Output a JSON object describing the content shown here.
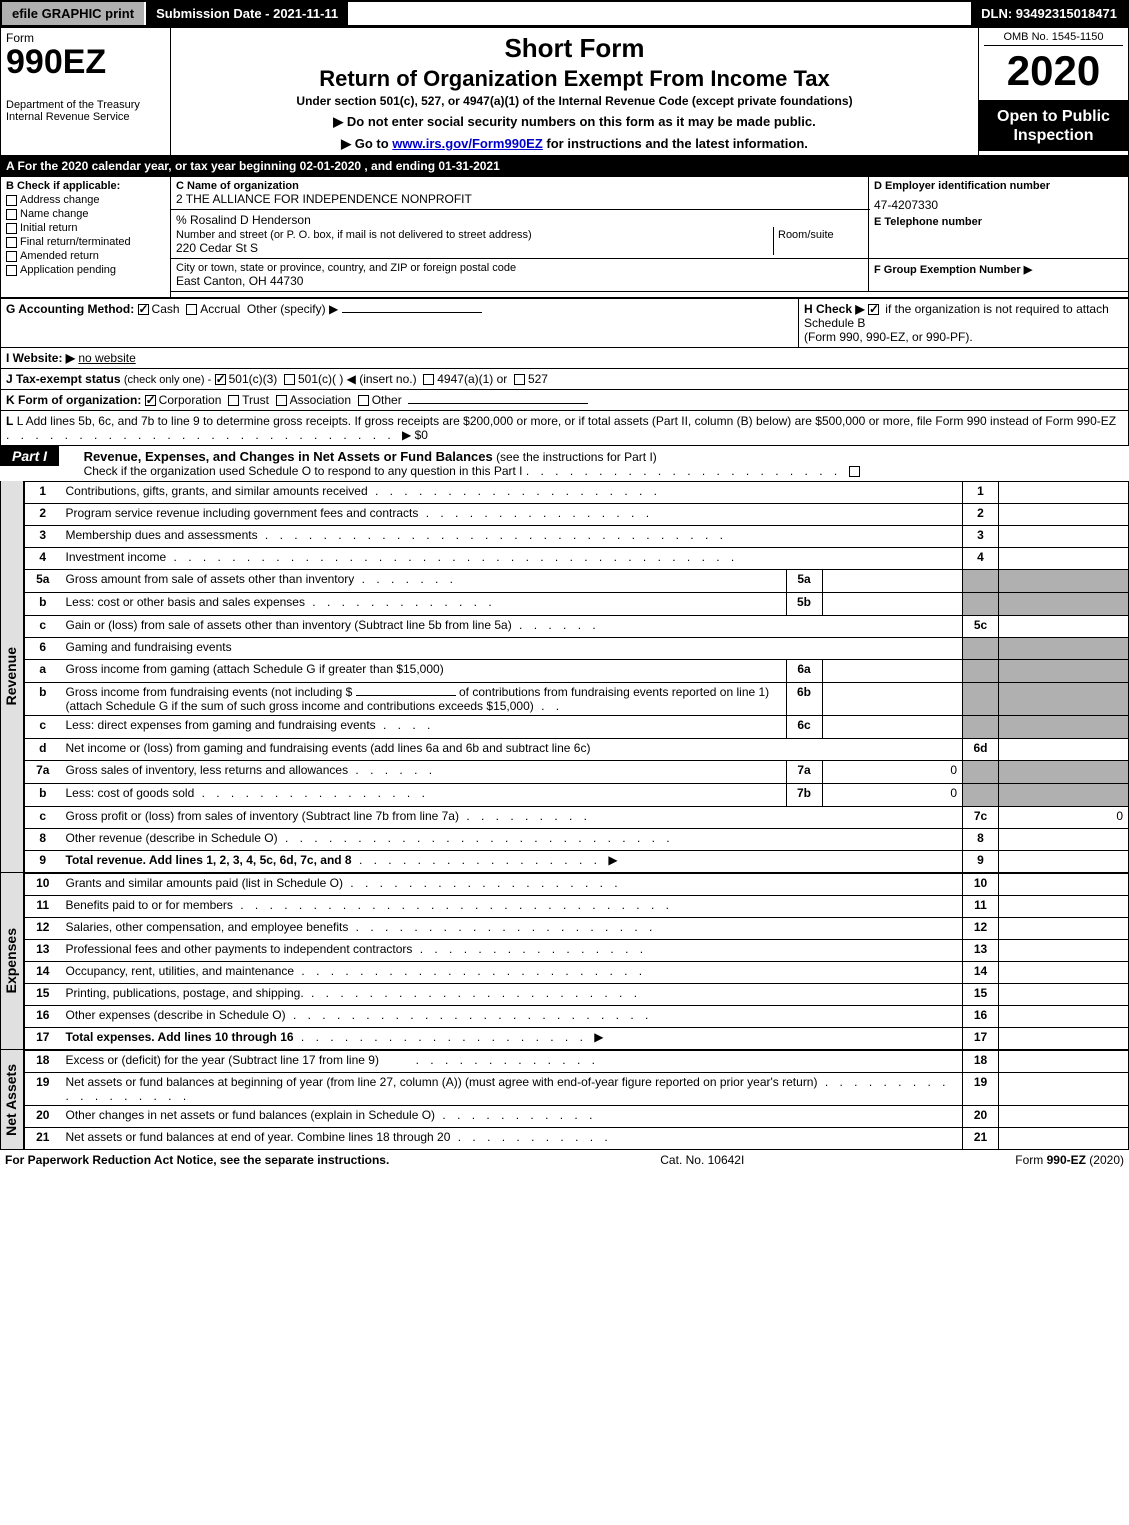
{
  "topbar": {
    "efile": "efile GRAPHIC print",
    "submission_label": "Submission Date - 2021-11-11",
    "dln": "DLN: 93492315018471"
  },
  "header": {
    "form_word": "Form",
    "form_number": "990EZ",
    "dept": "Department of the Treasury",
    "irs": "Internal Revenue Service",
    "short_form": "Short Form",
    "title": "Return of Organization Exempt From Income Tax",
    "subtitle": "Under section 501(c), 527, or 4947(a)(1) of the Internal Revenue Code (except private foundations)",
    "warn": "▶ Do not enter social security numbers on this form as it may be made public.",
    "goto_pre": "▶ Go to ",
    "goto_link": "www.irs.gov/Form990EZ",
    "goto_post": " for instructions and the latest information.",
    "omb": "OMB No. 1545-1150",
    "year": "2020",
    "open": "Open to Public Inspection"
  },
  "lineA": "A For the 2020 calendar year, or tax year beginning 02-01-2020 , and ending 01-31-2021",
  "boxB": {
    "label": "B  Check if applicable:",
    "items": [
      {
        "label": "Address change",
        "checked": false
      },
      {
        "label": "Name change",
        "checked": false
      },
      {
        "label": "Initial return",
        "checked": false
      },
      {
        "label": "Final return/terminated",
        "checked": false
      },
      {
        "label": "Amended return",
        "checked": false
      },
      {
        "label": "Application pending",
        "checked": false
      }
    ]
  },
  "boxC": {
    "label": "C Name of organization",
    "name": "2 THE ALLIANCE FOR INDEPENDENCE NONPROFIT",
    "care_of": "% Rosalind D Henderson",
    "street_label": "Number and street (or P. O. box, if mail is not delivered to street address)",
    "room_label": "Room/suite",
    "street": "220 Cedar St S",
    "city_label": "City or town, state or province, country, and ZIP or foreign postal code",
    "city": "East Canton, OH  44730"
  },
  "boxD": {
    "label": "D Employer identification number",
    "ein": "47-4207330"
  },
  "boxE": {
    "label": "E Telephone number",
    "value": ""
  },
  "boxF": {
    "label": "F Group Exemption Number  ▶",
    "value": ""
  },
  "lineG": {
    "label": "G Accounting Method:",
    "cash": "Cash",
    "accrual": "Accrual",
    "other": "Other (specify) ▶",
    "cash_checked": true,
    "accrual_checked": false
  },
  "lineH": {
    "pre": "H  Check ▶",
    "post": " if the organization is not required to attach Schedule B",
    "sub": "(Form 990, 990-EZ, or 990-PF).",
    "checked": true
  },
  "lineI": {
    "label": "I Website: ▶",
    "value": "no website"
  },
  "lineJ": {
    "label": "J Tax-exempt status",
    "note": "(check only one) -",
    "opt1": "501(c)(3)",
    "opt2": "501(c)(   ) ◀ (insert no.)",
    "opt3": "4947(a)(1) or",
    "opt4": "527",
    "opt1_checked": true
  },
  "lineK": {
    "label": "K Form of organization:",
    "opts": [
      {
        "label": "Corporation",
        "checked": true
      },
      {
        "label": "Trust",
        "checked": false
      },
      {
        "label": "Association",
        "checked": false
      },
      {
        "label": "Other",
        "checked": false
      }
    ]
  },
  "lineL": {
    "text": "L Add lines 5b, 6c, and 7b to line 9 to determine gross receipts. If gross receipts are $200,000 or more, or if total assets (Part II, column (B) below) are $500,000 or more, file Form 990 instead of Form 990-EZ",
    "amount_prefix": "▶ $",
    "amount": "0"
  },
  "part1": {
    "label": "Part I",
    "title": "Revenue, Expenses, and Changes in Net Assets or Fund Balances",
    "title_note": "(see the instructions for Part I)",
    "check_line": "Check if the organization used Schedule O to respond to any question in this Part I",
    "check_checked": false
  },
  "sections": {
    "revenue": "Revenue",
    "expenses": "Expenses",
    "netassets": "Net Assets"
  },
  "rows": {
    "1": {
      "n": "1",
      "d": "Contributions, gifts, grants, and similar amounts received",
      "rn": "1",
      "amt": ""
    },
    "2": {
      "n": "2",
      "d": "Program service revenue including government fees and contracts",
      "rn": "2",
      "amt": ""
    },
    "3": {
      "n": "3",
      "d": "Membership dues and assessments",
      "rn": "3",
      "amt": ""
    },
    "4": {
      "n": "4",
      "d": "Investment income",
      "rn": "4",
      "amt": ""
    },
    "5a": {
      "n": "5a",
      "d": "Gross amount from sale of assets other than inventory",
      "in": "5a",
      "iv": ""
    },
    "5b": {
      "n": "b",
      "d": "Less: cost or other basis and sales expenses",
      "in": "5b",
      "iv": ""
    },
    "5c": {
      "n": "c",
      "d": "Gain or (loss) from sale of assets other than inventory (Subtract line 5b from line 5a)",
      "rn": "5c",
      "amt": ""
    },
    "6": {
      "n": "6",
      "d": "Gaming and fundraising events"
    },
    "6a": {
      "n": "a",
      "d": "Gross income from gaming (attach Schedule G if greater than $15,000)",
      "in": "6a",
      "iv": ""
    },
    "6b": {
      "n": "b",
      "d1": "Gross income from fundraising events (not including $",
      "d2": "of contributions from fundraising events reported on line 1) (attach Schedule G if the sum of such gross income and contributions exceeds $15,000)",
      "in": "6b",
      "iv": ""
    },
    "6c": {
      "n": "c",
      "d": "Less: direct expenses from gaming and fundraising events",
      "in": "6c",
      "iv": ""
    },
    "6d": {
      "n": "d",
      "d": "Net income or (loss) from gaming and fundraising events (add lines 6a and 6b and subtract line 6c)",
      "rn": "6d",
      "amt": ""
    },
    "7a": {
      "n": "7a",
      "d": "Gross sales of inventory, less returns and allowances",
      "in": "7a",
      "iv": "0"
    },
    "7b": {
      "n": "b",
      "d": "Less: cost of goods sold",
      "in": "7b",
      "iv": "0"
    },
    "7c": {
      "n": "c",
      "d": "Gross profit or (loss) from sales of inventory (Subtract line 7b from line 7a)",
      "rn": "7c",
      "amt": "0"
    },
    "8": {
      "n": "8",
      "d": "Other revenue (describe in Schedule O)",
      "rn": "8",
      "amt": ""
    },
    "9": {
      "n": "9",
      "d": "Total revenue. Add lines 1, 2, 3, 4, 5c, 6d, 7c, and 8",
      "rn": "9",
      "amt": "",
      "bold": true
    },
    "10": {
      "n": "10",
      "d": "Grants and similar amounts paid (list in Schedule O)",
      "rn": "10",
      "amt": ""
    },
    "11": {
      "n": "11",
      "d": "Benefits paid to or for members",
      "rn": "11",
      "amt": ""
    },
    "12": {
      "n": "12",
      "d": "Salaries, other compensation, and employee benefits",
      "rn": "12",
      "amt": ""
    },
    "13": {
      "n": "13",
      "d": "Professional fees and other payments to independent contractors",
      "rn": "13",
      "amt": ""
    },
    "14": {
      "n": "14",
      "d": "Occupancy, rent, utilities, and maintenance",
      "rn": "14",
      "amt": ""
    },
    "15": {
      "n": "15",
      "d": "Printing, publications, postage, and shipping.",
      "rn": "15",
      "amt": ""
    },
    "16": {
      "n": "16",
      "d": "Other expenses (describe in Schedule O)",
      "rn": "16",
      "amt": ""
    },
    "17": {
      "n": "17",
      "d": "Total expenses. Add lines 10 through 16",
      "rn": "17",
      "amt": "",
      "bold": true
    },
    "18": {
      "n": "18",
      "d": "Excess or (deficit) for the year (Subtract line 17 from line 9)",
      "rn": "18",
      "amt": ""
    },
    "19": {
      "n": "19",
      "d": "Net assets or fund balances at beginning of year (from line 27, column (A)) (must agree with end-of-year figure reported on prior year's return)",
      "rn": "19",
      "amt": ""
    },
    "20": {
      "n": "20",
      "d": "Other changes in net assets or fund balances (explain in Schedule O)",
      "rn": "20",
      "amt": ""
    },
    "21": {
      "n": "21",
      "d": "Net assets or fund balances at end of year. Combine lines 18 through 20",
      "rn": "21",
      "amt": ""
    }
  },
  "footer": {
    "left": "For Paperwork Reduction Act Notice, see the separate instructions.",
    "mid": "Cat. No. 10642I",
    "right_pre": "Form ",
    "right_form": "990-EZ",
    "right_post": " (2020)"
  }
}
